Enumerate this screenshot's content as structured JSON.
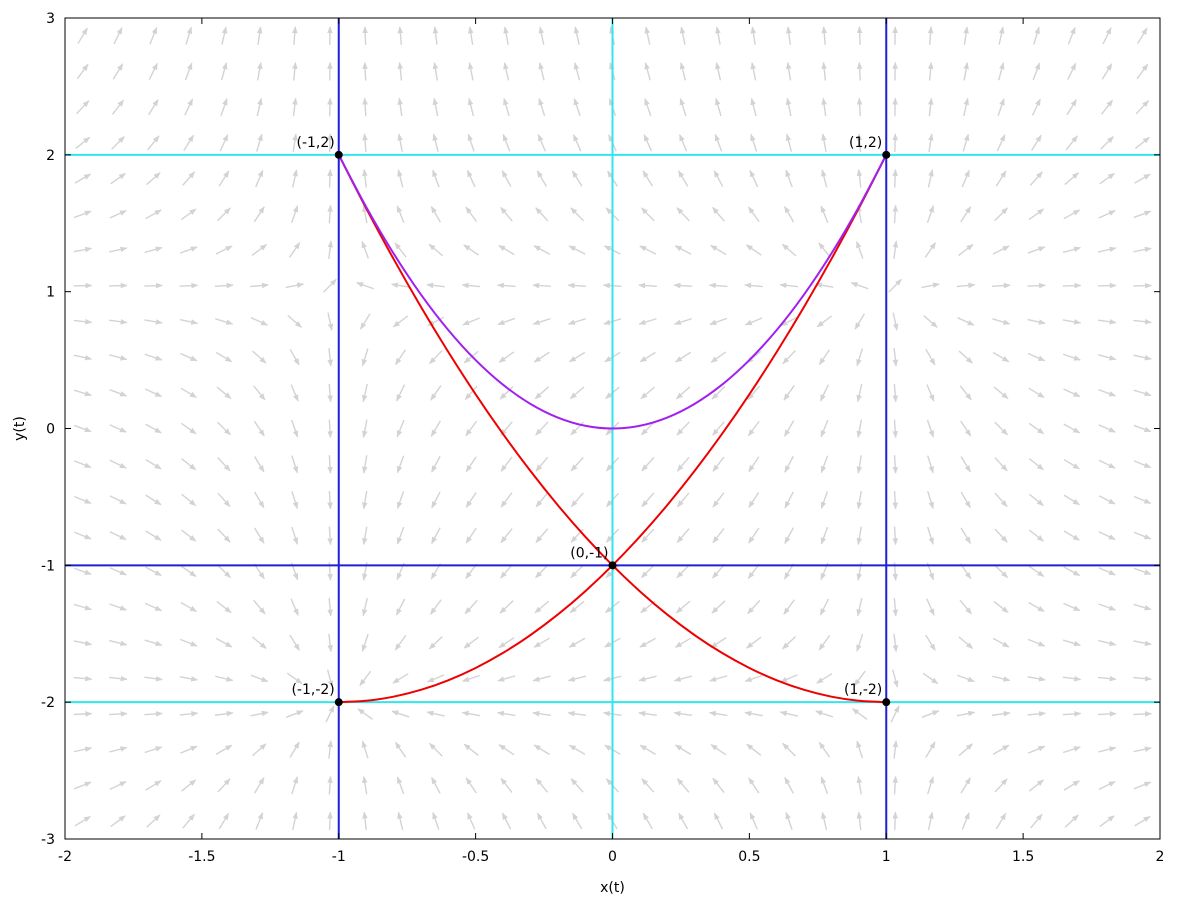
{
  "chart_data": {
    "type": "line",
    "title": "",
    "xlabel": "x(t)",
    "ylabel": "y(t)",
    "xlim": [
      -2,
      2
    ],
    "ylim": [
      -3,
      3
    ],
    "grid": false,
    "legend": "none",
    "x_ticks": [
      {
        "value": -2,
        "label": "-2"
      },
      {
        "value": -1.5,
        "label": "-1.5"
      },
      {
        "value": -1,
        "label": "-1"
      },
      {
        "value": -0.5,
        "label": "-0.5"
      },
      {
        "value": 0,
        "label": "0"
      },
      {
        "value": 0.5,
        "label": "0.5"
      },
      {
        "value": 1,
        "label": "1"
      },
      {
        "value": 1.5,
        "label": "1.5"
      },
      {
        "value": 2,
        "label": "2"
      }
    ],
    "y_ticks": [
      {
        "value": -3,
        "label": "-3"
      },
      {
        "value": -2,
        "label": "-2"
      },
      {
        "value": -1,
        "label": "-1"
      },
      {
        "value": 0,
        "label": "0"
      },
      {
        "value": 1,
        "label": "1"
      },
      {
        "value": 2,
        "label": "2"
      },
      {
        "value": 3,
        "label": "3"
      }
    ],
    "colors": {
      "vector_field": "#d3d3d3",
      "x_nullcline": "#1f1fd8",
      "y_nullcline": "#33e6ec",
      "separatrix": "#ee0000",
      "trajectory": "#a020f0",
      "equilibrium": "#000000"
    },
    "equilibria": [
      {
        "x": -1,
        "y": 2,
        "label": "(-1,2)"
      },
      {
        "x": 1,
        "y": 2,
        "label": "(1,2)"
      },
      {
        "x": 0,
        "y": -1,
        "label": "(0,-1)"
      },
      {
        "x": -1,
        "y": -2,
        "label": "(-1,-2)"
      },
      {
        "x": 1,
        "y": -2,
        "label": "(1,-2)"
      }
    ],
    "x_nullclines": [
      {
        "x": [
          -1,
          -1
        ],
        "y": [
          -1,
          3
        ]
      },
      {
        "x": [
          1,
          1
        ],
        "y": [
          -1,
          3
        ]
      },
      {
        "x": [
          -1,
          -1
        ],
        "y": [
          -3,
          -1
        ]
      },
      {
        "x": [
          1,
          1
        ],
        "y": [
          -3,
          -1
        ]
      },
      {
        "x": [
          -2,
          -1
        ],
        "y": [
          -1,
          -1
        ]
      },
      {
        "x": [
          -1,
          1
        ],
        "y": [
          -1,
          -1
        ]
      },
      {
        "x": [
          1,
          2
        ],
        "y": [
          -1,
          -1
        ]
      }
    ],
    "y_nullclines": [
      {
        "x": [
          0,
          0
        ],
        "y": [
          2,
          3
        ]
      },
      {
        "x": [
          0,
          0
        ],
        "y": [
          -2,
          2
        ]
      },
      {
        "x": [
          0,
          0
        ],
        "y": [
          -3,
          -2
        ]
      },
      {
        "x": [
          -2,
          0
        ],
        "y": [
          2,
          2
        ]
      },
      {
        "x": [
          0,
          2
        ],
        "y": [
          2,
          2
        ]
      },
      {
        "x": [
          -2,
          0
        ],
        "y": [
          -2,
          -2
        ]
      },
      {
        "x": [
          0,
          2
        ],
        "y": [
          -2,
          -2
        ]
      }
    ],
    "series": [
      {
        "role": "separatrix",
        "x": [
          -1,
          -0.9,
          -0.8,
          -0.7,
          -0.6,
          -0.5,
          -0.4,
          -0.3,
          -0.2,
          -0.1,
          0,
          0.1,
          0.2,
          0.3,
          0.4,
          0.5,
          0.6,
          0.7,
          0.8,
          0.9,
          1
        ],
        "y": [
          2,
          1.61,
          1.24,
          0.89,
          0.56,
          0.25,
          -0.04,
          -0.31,
          -0.56,
          -0.79,
          -1,
          -1.19,
          -1.36,
          -1.51,
          -1.64,
          -1.75,
          -1.84,
          -1.91,
          -1.96,
          -1.99,
          -2
        ]
      },
      {
        "role": "separatrix",
        "x": [
          -1,
          -0.9,
          -0.8,
          -0.7,
          -0.6,
          -0.5,
          -0.4,
          -0.3,
          -0.2,
          -0.1,
          0,
          0.1,
          0.2,
          0.3,
          0.4,
          0.5,
          0.6,
          0.7,
          0.8,
          0.9,
          1
        ],
        "y": [
          -2,
          -1.99,
          -1.96,
          -1.91,
          -1.84,
          -1.75,
          -1.64,
          -1.51,
          -1.36,
          -1.19,
          -1,
          -0.79,
          -0.56,
          -0.31,
          -0.04,
          0.25,
          0.56,
          0.89,
          1.24,
          1.61,
          2
        ]
      },
      {
        "role": "trajectory",
        "x": [
          -1,
          -0.9,
          -0.8,
          -0.7,
          -0.6,
          -0.5,
          -0.4,
          -0.3,
          -0.2,
          -0.1,
          0,
          0.1,
          0.2,
          0.3,
          0.4,
          0.5,
          0.6,
          0.7,
          0.8,
          0.9,
          1
        ],
        "y": [
          2,
          1.62,
          1.28,
          0.98,
          0.72,
          0.5,
          0.32,
          0.18,
          0.08,
          0.02,
          0,
          0.02,
          0.08,
          0.18,
          0.32,
          0.5,
          0.72,
          0.98,
          1.28,
          1.62,
          2
        ]
      }
    ]
  }
}
